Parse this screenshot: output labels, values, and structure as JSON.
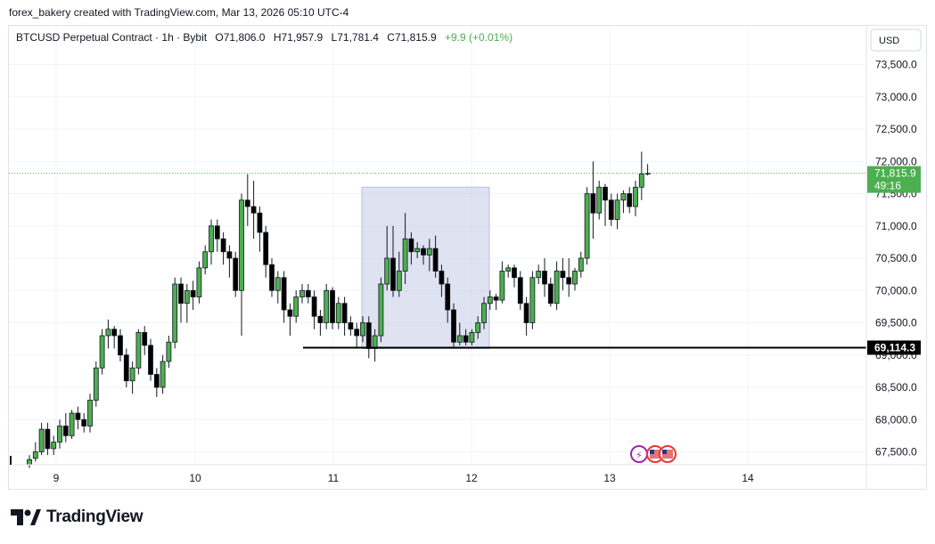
{
  "header": {
    "caption": "forex_bakery created with TradingView.com, Mar 13, 2026 05:10 UTC-4"
  },
  "legend": {
    "symbol": "BTCUSD Perpetual Contract · 1h · Bybit",
    "open": "O71,806.0",
    "high": "H71,957.9",
    "low": "L71,781.4",
    "close": "C71,815.9",
    "change": "+9.9 (+0.01%)"
  },
  "currency_button": "USD",
  "footer": {
    "brand": "TradingView"
  },
  "colors": {
    "up": "#4caf50",
    "down": "#000000",
    "box": "#c5cbe6",
    "price_line": "#4caf50"
  },
  "chart_data": {
    "type": "candlestick",
    "timeframe": "1h",
    "x_ticks": [
      "9",
      "10",
      "11",
      "12",
      "13",
      "14"
    ],
    "y_ticks": [
      "67,500.0",
      "68,000.0",
      "68,500.0",
      "69,000.0",
      "69,500.0",
      "70,000.0",
      "70,500.0",
      "71,000.0",
      "71,500.0",
      "72,000.0",
      "72,500.0",
      "73,000.0",
      "73,500.0"
    ],
    "y_range": [
      67300,
      74100
    ],
    "current_price": {
      "label": "71,815.9",
      "value": 71815.9,
      "countdown": "49:16"
    },
    "horizontal_level": {
      "label": "69,114.3",
      "value": 69114.3
    },
    "zone_box": {
      "price_top": 71600,
      "price_bottom": 69100
    },
    "candles": [
      [
        67300,
        67380,
        67250,
        67450
      ],
      [
        67400,
        67500,
        67350,
        67650
      ],
      [
        67500,
        67850,
        67450,
        67950
      ],
      [
        67850,
        67550,
        67450,
        67950
      ],
      [
        67550,
        67650,
        67450,
        67750
      ],
      [
        67650,
        67900,
        67550,
        68000
      ],
      [
        67900,
        67750,
        67650,
        68100
      ],
      [
        67750,
        68100,
        67700,
        68150
      ],
      [
        68100,
        68000,
        67850,
        68200
      ],
      [
        68000,
        67900,
        67800,
        68100
      ],
      [
        67900,
        68300,
        67800,
        68400
      ],
      [
        68300,
        68800,
        68200,
        68900
      ],
      [
        68800,
        69300,
        68700,
        69400
      ],
      [
        69300,
        69400,
        69100,
        69550
      ],
      [
        69400,
        69300,
        69100,
        69450
      ],
      [
        69300,
        69000,
        68900,
        69400
      ],
      [
        69000,
        68600,
        68500,
        69100
      ],
      [
        68600,
        68800,
        68400,
        68900
      ],
      [
        68800,
        69350,
        68700,
        69400
      ],
      [
        69350,
        69150,
        69000,
        69450
      ],
      [
        69150,
        68700,
        68600,
        69250
      ],
      [
        68700,
        68500,
        68350,
        68800
      ],
      [
        68500,
        68900,
        68400,
        69000
      ],
      [
        68900,
        69200,
        68800,
        69300
      ],
      [
        69200,
        70100,
        69100,
        70200
      ],
      [
        70100,
        69800,
        69500,
        70200
      ],
      [
        69800,
        70000,
        69500,
        70100
      ],
      [
        70000,
        69900,
        69700,
        70150
      ],
      [
        69900,
        70350,
        69800,
        70450
      ],
      [
        70350,
        70600,
        70250,
        70700
      ],
      [
        70600,
        71000,
        70400,
        71100
      ],
      [
        71000,
        70800,
        70600,
        71100
      ],
      [
        70800,
        70600,
        70400,
        70900
      ],
      [
        70600,
        70500,
        70200,
        70700
      ],
      [
        70500,
        70000,
        69900,
        70600
      ],
      [
        70000,
        71400,
        69300,
        71500
      ],
      [
        71400,
        71300,
        71000,
        71800
      ],
      [
        71300,
        71200,
        70800,
        71700
      ],
      [
        71200,
        70900,
        70600,
        71300
      ],
      [
        70900,
        70400,
        70200,
        71000
      ],
      [
        70400,
        70000,
        69900,
        70500
      ],
      [
        70000,
        70200,
        69800,
        70300
      ],
      [
        70200,
        69700,
        69500,
        70300
      ],
      [
        69700,
        69600,
        69300,
        69800
      ],
      [
        69600,
        69900,
        69500,
        70000
      ],
      [
        69900,
        70000,
        69800,
        70100
      ],
      [
        70000,
        69900,
        69800,
        70100
      ],
      [
        69900,
        69600,
        69400,
        70000
      ],
      [
        69600,
        69500,
        69300,
        69700
      ],
      [
        69500,
        70000,
        69400,
        70100
      ],
      [
        70000,
        69500,
        69400,
        70050
      ],
      [
        69500,
        69800,
        69400,
        69900
      ],
      [
        69800,
        69500,
        69300,
        69900
      ],
      [
        69500,
        69400,
        69300,
        69600
      ],
      [
        69400,
        69300,
        69100,
        69500
      ],
      [
        69300,
        69500,
        69200,
        69600
      ],
      [
        69500,
        69100,
        68950,
        69600
      ],
      [
        69100,
        69300,
        68900,
        69400
      ],
      [
        69300,
        70100,
        69200,
        70200
      ],
      [
        70100,
        70500,
        70000,
        71000
      ],
      [
        70500,
        70000,
        69900,
        71000
      ],
      [
        70000,
        70300,
        69900,
        70600
      ],
      [
        70300,
        70800,
        70100,
        71200
      ],
      [
        70800,
        70600,
        70400,
        70900
      ],
      [
        70600,
        70650,
        70500,
        70750
      ],
      [
        70650,
        70550,
        70400,
        70700
      ],
      [
        70550,
        70650,
        70300,
        70800
      ],
      [
        70650,
        70300,
        70200,
        70850
      ],
      [
        70300,
        70100,
        69900,
        70400
      ],
      [
        70100,
        69700,
        69500,
        70200
      ],
      [
        69700,
        69200,
        69100,
        69800
      ],
      [
        69200,
        69300,
        69150,
        69500
      ],
      [
        69300,
        69200,
        69150,
        69400
      ],
      [
        69200,
        69350,
        69150,
        69400
      ],
      [
        69350,
        69500,
        69250,
        69600
      ],
      [
        69500,
        69800,
        69400,
        69900
      ],
      [
        69800,
        69900,
        69700,
        70000
      ],
      [
        69900,
        69850,
        69700,
        69950
      ],
      [
        69850,
        70300,
        69800,
        70450
      ],
      [
        70300,
        70350,
        70200,
        70400
      ],
      [
        70350,
        70200,
        70050,
        70400
      ],
      [
        70200,
        69800,
        69700,
        70300
      ],
      [
        69800,
        69500,
        69300,
        69900
      ],
      [
        69500,
        70200,
        69400,
        70300
      ],
      [
        70200,
        70300,
        70100,
        70400
      ],
      [
        70300,
        70100,
        69900,
        70500
      ],
      [
        70100,
        69800,
        69750,
        70200
      ],
      [
        69800,
        70300,
        69700,
        70450
      ],
      [
        70300,
        70200,
        70000,
        70500
      ],
      [
        70200,
        70100,
        69900,
        70500
      ],
      [
        70100,
        70300,
        70000,
        70350
      ],
      [
        70300,
        70500,
        70200,
        70600
      ],
      [
        70500,
        71500,
        70400,
        71600
      ],
      [
        71500,
        71200,
        70800,
        72000
      ],
      [
        71200,
        71600,
        71100,
        71700
      ],
      [
        71600,
        71400,
        71000,
        71650
      ],
      [
        71400,
        71100,
        71000,
        71500
      ],
      [
        71100,
        71400,
        70950,
        71500
      ],
      [
        71400,
        71500,
        71200,
        71550
      ],
      [
        71500,
        71300,
        71200,
        71600
      ],
      [
        71300,
        71600,
        71150,
        71700
      ],
      [
        71600,
        71806,
        71400,
        72150
      ],
      [
        71806,
        71815.9,
        71781.4,
        71957.9
      ]
    ]
  }
}
